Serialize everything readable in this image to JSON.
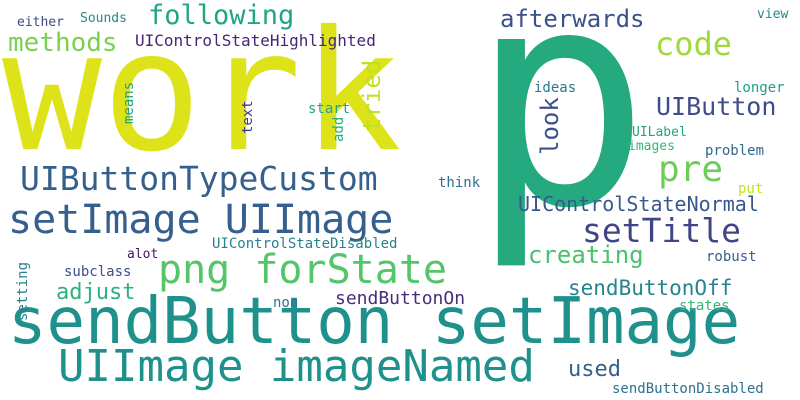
{
  "palette": {
    "yellow": "#dde318",
    "green": "#24aa7e",
    "lime": "#6ecd59",
    "teal": "#1e918c",
    "blue": "#355f8d",
    "indigo": "#3b518b",
    "purple": "#482475",
    "navy": "#404587",
    "mint": "#2db27d",
    "sea": "#21a685"
  },
  "words": [
    {
      "text": "work",
      "color": "#dde318",
      "rotate": 0
    },
    {
      "text": "p",
      "color": "#24aa7e",
      "rotate": 0
    },
    {
      "text": "sendButton setImage",
      "color": "#1e918c",
      "rotate": 0
    },
    {
      "text": "setImage UIImage",
      "color": "#355f8d",
      "rotate": 0
    },
    {
      "text": "UIImage imageNamed",
      "color": "#1e918c",
      "rotate": 0
    },
    {
      "text": "UIButtonTypeCustom",
      "color": "#355f8d",
      "rotate": 0
    },
    {
      "text": "png forState",
      "color": "#54c568",
      "rotate": 0
    },
    {
      "text": "code",
      "color": "#9fda3a",
      "rotate": 0
    },
    {
      "text": "pre",
      "color": "#6ecd59",
      "rotate": 0
    },
    {
      "text": "setTitle",
      "color": "#404587",
      "rotate": 0
    },
    {
      "text": "following",
      "color": "#21a685",
      "rotate": 0
    },
    {
      "text": "methods",
      "color": "#7ad151",
      "rotate": 0
    },
    {
      "text": "afterwards",
      "color": "#3b518b",
      "rotate": 0
    },
    {
      "text": "UIButton",
      "color": "#3e4c8a",
      "rotate": 0
    },
    {
      "text": "UIControlStateNormal",
      "color": "#38588c",
      "rotate": 0
    },
    {
      "text": "creating",
      "color": "#4ac16d",
      "rotate": 0
    },
    {
      "text": "sendButtonOff",
      "color": "#25848e",
      "rotate": 0
    },
    {
      "text": "sendButtonOn",
      "color": "#472d7b",
      "rotate": 0
    },
    {
      "text": "adjust",
      "color": "#2db27d",
      "rotate": 0
    },
    {
      "text": "used",
      "color": "#33638d",
      "rotate": 0
    },
    {
      "text": "tried",
      "color": "#c2df23",
      "rotate": -90
    },
    {
      "text": "look",
      "color": "#3b528b",
      "rotate": -90
    },
    {
      "text": "UIControlStateHighlighted",
      "color": "#482475",
      "rotate": 0
    },
    {
      "text": "UIControlStateDisabled",
      "color": "#26828e",
      "rotate": 0
    },
    {
      "text": "sendButtonDisabled",
      "color": "#2c728e",
      "rotate": 0
    },
    {
      "text": "Sounds",
      "color": "#238a8d",
      "rotate": 0
    },
    {
      "text": "either",
      "color": "#3f4788",
      "rotate": 0
    },
    {
      "text": "view",
      "color": "#25858e",
      "rotate": 0
    },
    {
      "text": "longer",
      "color": "#1f9e89",
      "rotate": 0
    },
    {
      "text": "ideas",
      "color": "#2a788e",
      "rotate": 0
    },
    {
      "text": "start",
      "color": "#20a386",
      "rotate": 0
    },
    {
      "text": "means",
      "color": "#1fa088",
      "rotate": -90
    },
    {
      "text": "text",
      "color": "#443983",
      "rotate": -90
    },
    {
      "text": "add",
      "color": "#28ae80",
      "rotate": -90
    },
    {
      "text": "UILabel",
      "color": "#20a486",
      "rotate": 0
    },
    {
      "text": "images",
      "color": "#34b679",
      "rotate": 0
    },
    {
      "text": "problem",
      "color": "#31688e",
      "rotate": 0
    },
    {
      "text": "think",
      "color": "#2d708e",
      "rotate": 0
    },
    {
      "text": "put",
      "color": "#c8e020",
      "rotate": 0
    },
    {
      "text": "robust",
      "color": "#365c8d",
      "rotate": 0
    },
    {
      "text": "alot",
      "color": "#471365",
      "rotate": 0
    },
    {
      "text": "subclass",
      "color": "#3d4e8a",
      "rotate": 0
    },
    {
      "text": "setting",
      "color": "#27808e",
      "rotate": -90
    },
    {
      "text": "non",
      "color": "#2c738e",
      "rotate": 0
    },
    {
      "text": "states",
      "color": "#35b779",
      "rotate": 0
    }
  ]
}
